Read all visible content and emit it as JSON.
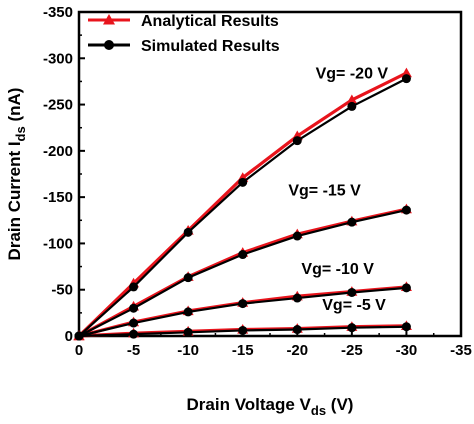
{
  "chart_data": {
    "type": "line",
    "xlabel": "Drain Voltage V",
    "xlabel_sub": "ds",
    "xlabel_unit": " (V)",
    "ylabel": "Drain Current I",
    "ylabel_sub": "ds",
    "ylabel_unit": " (nA)",
    "xlim": [
      0,
      -35
    ],
    "ylim": [
      0,
      -350
    ],
    "xticks": [
      0,
      -5,
      -10,
      -15,
      -20,
      -25,
      -30,
      -35
    ],
    "yticks": [
      0,
      -50,
      -100,
      -150,
      -200,
      -250,
      -300,
      -350
    ],
    "legend_position": "top-left",
    "legend": [
      {
        "label": "Analytical Results",
        "color": "#e8141c",
        "marker": "triangle"
      },
      {
        "label": "Simulated Results",
        "color": "#000000",
        "marker": "circle"
      }
    ],
    "x": [
      0,
      -5,
      -10,
      -15,
      -20,
      -25,
      -30
    ],
    "series": [
      {
        "group": "Analytical Results",
        "curve": "Vg= -20 V",
        "color": "#e8141c",
        "marker": "triangle",
        "values": [
          0,
          -57,
          -114,
          -171,
          -216,
          -255,
          -284
        ]
      },
      {
        "group": "Simulated Results",
        "curve": "Vg= -20 V",
        "color": "#000000",
        "marker": "circle",
        "values": [
          0,
          -53,
          -112,
          -166,
          -211,
          -248,
          -278
        ]
      },
      {
        "group": "Analytical Results",
        "curve": "Vg= -15 V",
        "color": "#e8141c",
        "marker": "triangle",
        "values": [
          0,
          -32,
          -64,
          -90,
          -110,
          -124,
          -137
        ]
      },
      {
        "group": "Simulated Results",
        "curve": "Vg= -15 V",
        "color": "#000000",
        "marker": "circle",
        "values": [
          0,
          -30,
          -63,
          -88,
          -108,
          -123,
          -136
        ]
      },
      {
        "group": "Analytical Results",
        "curve": "Vg= -10 V",
        "color": "#e8141c",
        "marker": "triangle",
        "values": [
          0,
          -15,
          -27,
          -36,
          -43,
          -48,
          -53
        ]
      },
      {
        "group": "Simulated Results",
        "curve": "Vg= -10 V",
        "color": "#000000",
        "marker": "circle",
        "values": [
          0,
          -14,
          -26,
          -35,
          -41,
          -47,
          -52
        ]
      },
      {
        "group": "Analytical Results",
        "curve": "Vg= -5 V",
        "color": "#e8141c",
        "marker": "triangle",
        "values": [
          0,
          -3,
          -5,
          -7,
          -8,
          -10,
          -11
        ]
      },
      {
        "group": "Simulated Results",
        "curve": "Vg= -5 V",
        "color": "#000000",
        "marker": "circle",
        "values": [
          0,
          -2,
          -4,
          -6,
          -7,
          -9,
          -10
        ]
      }
    ],
    "annotations": [
      {
        "text": "Vg= -20 V",
        "x": -25,
        "y": -278
      },
      {
        "text": "Vg= -15 V",
        "x": -22.5,
        "y": -152
      },
      {
        "text": "Vg= -10 V",
        "x": -23.7,
        "y": -67
      },
      {
        "text": "Vg= -5 V",
        "x": -25.2,
        "y": -28
      }
    ]
  }
}
